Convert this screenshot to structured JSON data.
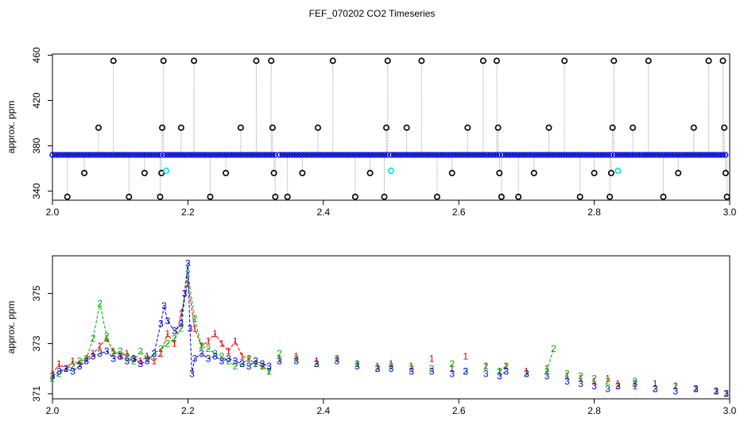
{
  "figure": {
    "title": "FEF_070202  CO2 Timeseries"
  },
  "colors": {
    "red": "#e00000",
    "green": "#00b000",
    "blue": "#0000e0",
    "black": "#000000",
    "cyan": "#00e0e0",
    "gray": "#a0a0a0"
  },
  "chart_data": [
    {
      "type": "scatter",
      "title": "",
      "xlabel": "",
      "ylabel": "approx. ppm",
      "xlim": [
        2.0,
        3.0
      ],
      "ylim": [
        332,
        461
      ],
      "x_ticks": [
        "2.0",
        "2.2",
        "2.4",
        "2.6",
        "2.8",
        "3.0"
      ],
      "y_ticks": [
        "340",
        "380",
        "420",
        "460"
      ],
      "baseline": {
        "value": 372,
        "segments": [
          [
            2.0,
            2.16
          ],
          [
            2.165,
            2.33
          ],
          [
            2.335,
            2.495
          ],
          [
            2.5,
            2.66
          ],
          [
            2.665,
            2.825
          ],
          [
            2.83,
            2.995
          ]
        ]
      },
      "outliers_black": [
        {
          "x": 2.022,
          "y": 335
        },
        {
          "x": 2.047,
          "y": 356
        },
        {
          "x": 2.068,
          "y": 396
        },
        {
          "x": 2.09,
          "y": 455
        },
        {
          "x": 2.113,
          "y": 335
        },
        {
          "x": 2.136,
          "y": 356
        },
        {
          "x": 2.159,
          "y": 335
        },
        {
          "x": 2.161,
          "y": 356
        },
        {
          "x": 2.162,
          "y": 396
        },
        {
          "x": 2.164,
          "y": 455
        },
        {
          "x": 2.19,
          "y": 396
        },
        {
          "x": 2.209,
          "y": 455
        },
        {
          "x": 2.233,
          "y": 335
        },
        {
          "x": 2.256,
          "y": 356
        },
        {
          "x": 2.278,
          "y": 396
        },
        {
          "x": 2.301,
          "y": 455
        },
        {
          "x": 2.323,
          "y": 455
        },
        {
          "x": 2.325,
          "y": 396
        },
        {
          "x": 2.327,
          "y": 356
        },
        {
          "x": 2.329,
          "y": 335
        },
        {
          "x": 2.347,
          "y": 335
        },
        {
          "x": 2.369,
          "y": 356
        },
        {
          "x": 2.392,
          "y": 396
        },
        {
          "x": 2.414,
          "y": 455
        },
        {
          "x": 2.447,
          "y": 335
        },
        {
          "x": 2.469,
          "y": 356
        },
        {
          "x": 2.49,
          "y": 335
        },
        {
          "x": 2.493,
          "y": 396
        },
        {
          "x": 2.495,
          "y": 455
        },
        {
          "x": 2.523,
          "y": 396
        },
        {
          "x": 2.545,
          "y": 455
        },
        {
          "x": 2.568,
          "y": 335
        },
        {
          "x": 2.59,
          "y": 356
        },
        {
          "x": 2.613,
          "y": 396
        },
        {
          "x": 2.636,
          "y": 455
        },
        {
          "x": 2.656,
          "y": 455
        },
        {
          "x": 2.658,
          "y": 396
        },
        {
          "x": 2.66,
          "y": 356
        },
        {
          "x": 2.663,
          "y": 335
        },
        {
          "x": 2.688,
          "y": 335
        },
        {
          "x": 2.711,
          "y": 356
        },
        {
          "x": 2.733,
          "y": 396
        },
        {
          "x": 2.756,
          "y": 455
        },
        {
          "x": 2.779,
          "y": 335
        },
        {
          "x": 2.8,
          "y": 356
        },
        {
          "x": 2.823,
          "y": 335
        },
        {
          "x": 2.825,
          "y": 356
        },
        {
          "x": 2.827,
          "y": 396
        },
        {
          "x": 2.829,
          "y": 455
        },
        {
          "x": 2.857,
          "y": 396
        },
        {
          "x": 2.88,
          "y": 455
        },
        {
          "x": 2.902,
          "y": 335
        },
        {
          "x": 2.924,
          "y": 356
        },
        {
          "x": 2.947,
          "y": 396
        },
        {
          "x": 2.969,
          "y": 455
        },
        {
          "x": 2.99,
          "y": 455
        },
        {
          "x": 2.992,
          "y": 396
        },
        {
          "x": 2.994,
          "y": 356
        },
        {
          "x": 2.996,
          "y": 335
        }
      ],
      "outliers_cyan": [
        {
          "x": 2.168,
          "y": 358
        },
        {
          "x": 2.5,
          "y": 358
        },
        {
          "x": 2.835,
          "y": 358
        }
      ]
    },
    {
      "type": "line",
      "title": "",
      "xlabel": "",
      "ylabel": "approx. ppm",
      "xlim": [
        2.0,
        3.0
      ],
      "ylim": [
        370.8,
        376.5
      ],
      "x_ticks": [
        "2.0",
        "2.2",
        "2.4",
        "2.6",
        "2.8",
        "3.0"
      ],
      "y_ticks": [
        "371",
        "373",
        "375"
      ],
      "series": [
        {
          "label": "1",
          "x": [
            2.0,
            2.01,
            2.02,
            2.03,
            2.04,
            2.05,
            2.06,
            2.07,
            2.08,
            2.09,
            2.1,
            2.11,
            2.12,
            2.13,
            2.14,
            2.15,
            2.16,
            2.17,
            2.18,
            2.19,
            2.2,
            2.21,
            2.22,
            2.23,
            2.24,
            2.25,
            2.26,
            2.27,
            2.28,
            2.29,
            2.3,
            2.31,
            2.32,
            2.335,
            2.36,
            2.39,
            2.42,
            2.45,
            2.48,
            2.5,
            2.53,
            2.56,
            2.59,
            2.61,
            2.64,
            2.66,
            2.67,
            2.7,
            2.73,
            2.76,
            2.78,
            2.8,
            2.82,
            2.835,
            2.86,
            2.89,
            2.92,
            2.95,
            2.98,
            2.995
          ],
          "y": [
            371.8,
            372.2,
            372.0,
            372.3,
            372.2,
            372.4,
            372.6,
            372.9,
            373.2,
            372.7,
            372.5,
            372.6,
            372.4,
            372.3,
            372.5,
            372.3,
            372.6,
            373.4,
            373.0,
            374.2,
            375.4,
            373.6,
            372.9,
            373.1,
            373.4,
            373.0,
            372.7,
            373.1,
            372.5,
            372.4,
            372.2,
            372.1,
            371.9,
            372.4,
            372.5,
            372.3,
            372.4,
            372.2,
            372.1,
            372.2,
            372.1,
            372.4,
            372.0,
            372.5,
            372.1,
            371.9,
            372.1,
            371.9,
            372.0,
            371.7,
            371.6,
            371.5,
            371.6,
            371.4,
            371.3,
            371.4,
            371.3,
            371.2,
            371.1,
            371.0
          ]
        },
        {
          "label": "2",
          "x": [
            2.0,
            2.01,
            2.02,
            2.03,
            2.04,
            2.05,
            2.06,
            2.07,
            2.08,
            2.09,
            2.1,
            2.11,
            2.12,
            2.13,
            2.14,
            2.15,
            2.16,
            2.17,
            2.18,
            2.19,
            2.2,
            2.21,
            2.22,
            2.23,
            2.24,
            2.25,
            2.26,
            2.27,
            2.28,
            2.29,
            2.3,
            2.31,
            2.32,
            2.335,
            2.36,
            2.39,
            2.42,
            2.45,
            2.48,
            2.5,
            2.53,
            2.56,
            2.59,
            2.61,
            2.64,
            2.66,
            2.67,
            2.7,
            2.73,
            2.74,
            2.76,
            2.78,
            2.8,
            2.82,
            2.835,
            2.86,
            2.89,
            2.92,
            2.95,
            2.98,
            2.995
          ],
          "y": [
            371.6,
            371.8,
            372.0,
            372.1,
            372.3,
            372.4,
            373.2,
            374.6,
            373.3,
            372.6,
            372.7,
            372.5,
            372.3,
            372.7,
            372.4,
            372.6,
            372.8,
            373.0,
            373.2,
            373.6,
            375.8,
            374.0,
            372.9,
            372.8,
            372.6,
            372.5,
            372.3,
            372.1,
            372.2,
            372.4,
            372.2,
            372.1,
            371.9,
            372.6,
            372.4,
            372.2,
            372.4,
            372.2,
            372.0,
            372.1,
            372.0,
            372.0,
            372.2,
            371.9,
            372.1,
            371.9,
            372.1,
            371.8,
            371.9,
            372.8,
            371.8,
            371.7,
            371.6,
            371.5,
            371.3,
            371.5,
            371.2,
            371.3,
            371.2,
            371.1,
            371.0
          ]
        },
        {
          "label": "3",
          "x": [
            2.0,
            2.01,
            2.02,
            2.03,
            2.04,
            2.05,
            2.06,
            2.07,
            2.08,
            2.09,
            2.1,
            2.11,
            2.12,
            2.13,
            2.14,
            2.15,
            2.16,
            2.165,
            2.17,
            2.18,
            2.19,
            2.195,
            2.2,
            2.203,
            2.206,
            2.21,
            2.22,
            2.23,
            2.24,
            2.25,
            2.26,
            2.27,
            2.28,
            2.29,
            2.3,
            2.31,
            2.32,
            2.335,
            2.36,
            2.39,
            2.42,
            2.45,
            2.48,
            2.5,
            2.53,
            2.56,
            2.59,
            2.61,
            2.64,
            2.66,
            2.67,
            2.7,
            2.73,
            2.76,
            2.78,
            2.8,
            2.82,
            2.835,
            2.86,
            2.89,
            2.92,
            2.95,
            2.98,
            2.995
          ],
          "y": [
            371.7,
            371.9,
            372.0,
            371.9,
            372.1,
            372.3,
            372.5,
            372.6,
            372.7,
            372.4,
            372.5,
            372.3,
            372.4,
            372.2,
            372.3,
            372.6,
            373.8,
            374.5,
            373.9,
            373.5,
            373.8,
            375.0,
            376.2,
            373.6,
            371.8,
            372.4,
            372.6,
            372.4,
            372.5,
            372.3,
            372.4,
            372.3,
            372.2,
            372.1,
            372.3,
            372.2,
            372.1,
            372.3,
            372.3,
            372.2,
            372.3,
            372.1,
            372.0,
            372.0,
            371.9,
            371.9,
            371.8,
            371.9,
            371.8,
            371.7,
            371.9,
            371.8,
            371.7,
            371.5,
            371.4,
            371.3,
            371.2,
            371.3,
            371.4,
            371.2,
            371.1,
            371.2,
            371.1,
            371.0
          ]
        }
      ]
    }
  ]
}
